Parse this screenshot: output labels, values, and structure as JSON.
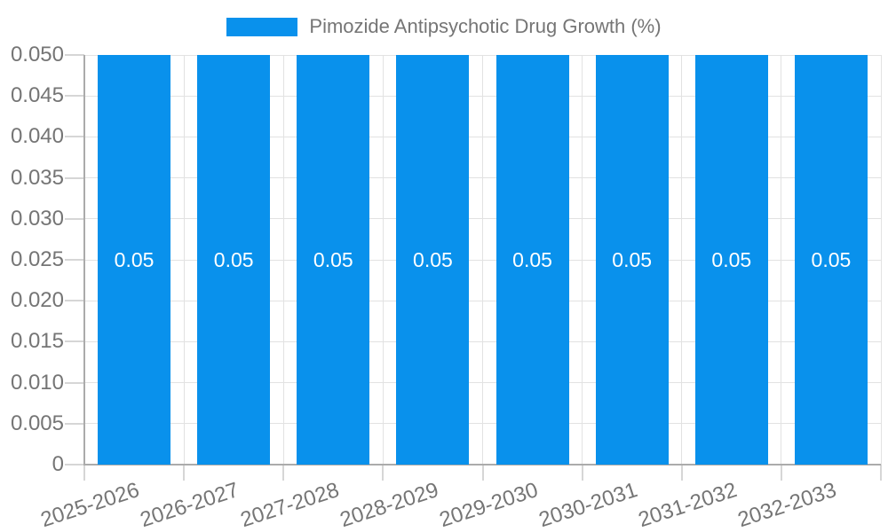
{
  "legend": {
    "label": "Pimozide Antipsychotic Drug Growth (%)"
  },
  "chart_data": {
    "type": "bar",
    "title": "Pimozide Antipsychotic Drug Growth (%)",
    "categories": [
      "2025-2026",
      "2026-2027",
      "2027-2028",
      "2028-2029",
      "2029-2030",
      "2030-2031",
      "2031-2032",
      "2032-2033"
    ],
    "values": [
      0.05,
      0.05,
      0.05,
      0.05,
      0.05,
      0.05,
      0.05,
      0.05
    ],
    "bar_labels": [
      "0.05",
      "0.05",
      "0.05",
      "0.05",
      "0.05",
      "0.05",
      "0.05",
      "0.05"
    ],
    "xlabel": "",
    "ylabel": "",
    "ylim": [
      0,
      0.05
    ],
    "yticks": [
      0,
      0.005,
      0.01,
      0.015,
      0.02,
      0.025,
      0.03,
      0.035,
      0.04,
      0.045,
      0.05
    ],
    "ytick_labels": [
      "0",
      "0.005",
      "0.010",
      "0.015",
      "0.020",
      "0.025",
      "0.030",
      "0.035",
      "0.040",
      "0.045",
      "0.050"
    ],
    "grid": true,
    "legend_position": "top",
    "colors": {
      "bar": "#0991EC",
      "grid": "#E2E2E2",
      "tick": "#D6D6D6",
      "axis": "#ABABAB",
      "text": "#757575",
      "bar_label": "#FFFFFF",
      "background": "#FFFFFF"
    }
  }
}
